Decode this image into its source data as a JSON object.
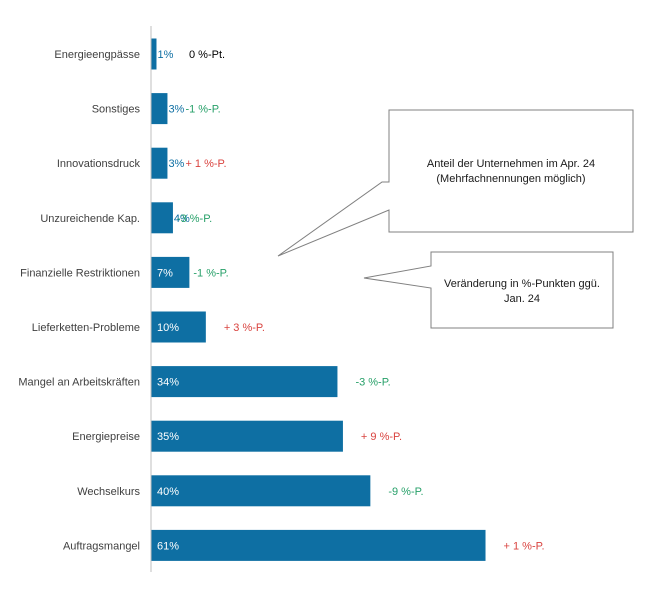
{
  "chart_data": {
    "type": "bar",
    "orientation": "horizontal",
    "categories": [
      "Energieengpässe",
      "Sonstiges",
      "Innovationsdruck",
      "Unzureichende Kap.",
      "Finanzielle Restriktionen",
      "Lieferketten-Probleme",
      "Mangel an Arbeitskräften",
      "Energiepreise",
      "Wechselkurs",
      "Auftragsmangel"
    ],
    "values": [
      1,
      3,
      3,
      4,
      7,
      10,
      34,
      35,
      40,
      61
    ],
    "value_labels": [
      "1%",
      "3%",
      "3%",
      "4%",
      "7%",
      "10%",
      "34%",
      "35%",
      "40%",
      "61%"
    ],
    "changes": [
      0,
      -1,
      1,
      -3,
      -1,
      3,
      -3,
      9,
      -9,
      1
    ],
    "change_labels": [
      "0 %-Pt.",
      "-1 %-P.",
      "+ 1 %-P.",
      "-3 %-P.",
      "-1 %-P.",
      "+ 3 %-P.",
      "-3 %-P.",
      "+ 9 %-P.",
      "-9 %-P.",
      "+ 1 %-P."
    ],
    "xlim": [
      0,
      62
    ],
    "grid": false,
    "annotations": [
      {
        "lines": [
          "Anteil der Unternehmen im Apr. 24",
          "(Mehrfachnennungen möglich)"
        ]
      },
      {
        "lines": [
          "Veränderung in %-Punkten ggü.",
          "Jan. 24"
        ]
      }
    ]
  },
  "colors": {
    "bar": "#0e6fa3",
    "positive_change": "#d9433f",
    "negative_change": "#27a069",
    "zero_change": "#000000",
    "value_text_outside": "#0e6fa3",
    "value_text_inside": "#ffffff",
    "axis": "#bfbfbf",
    "callout_border": "#808080"
  }
}
